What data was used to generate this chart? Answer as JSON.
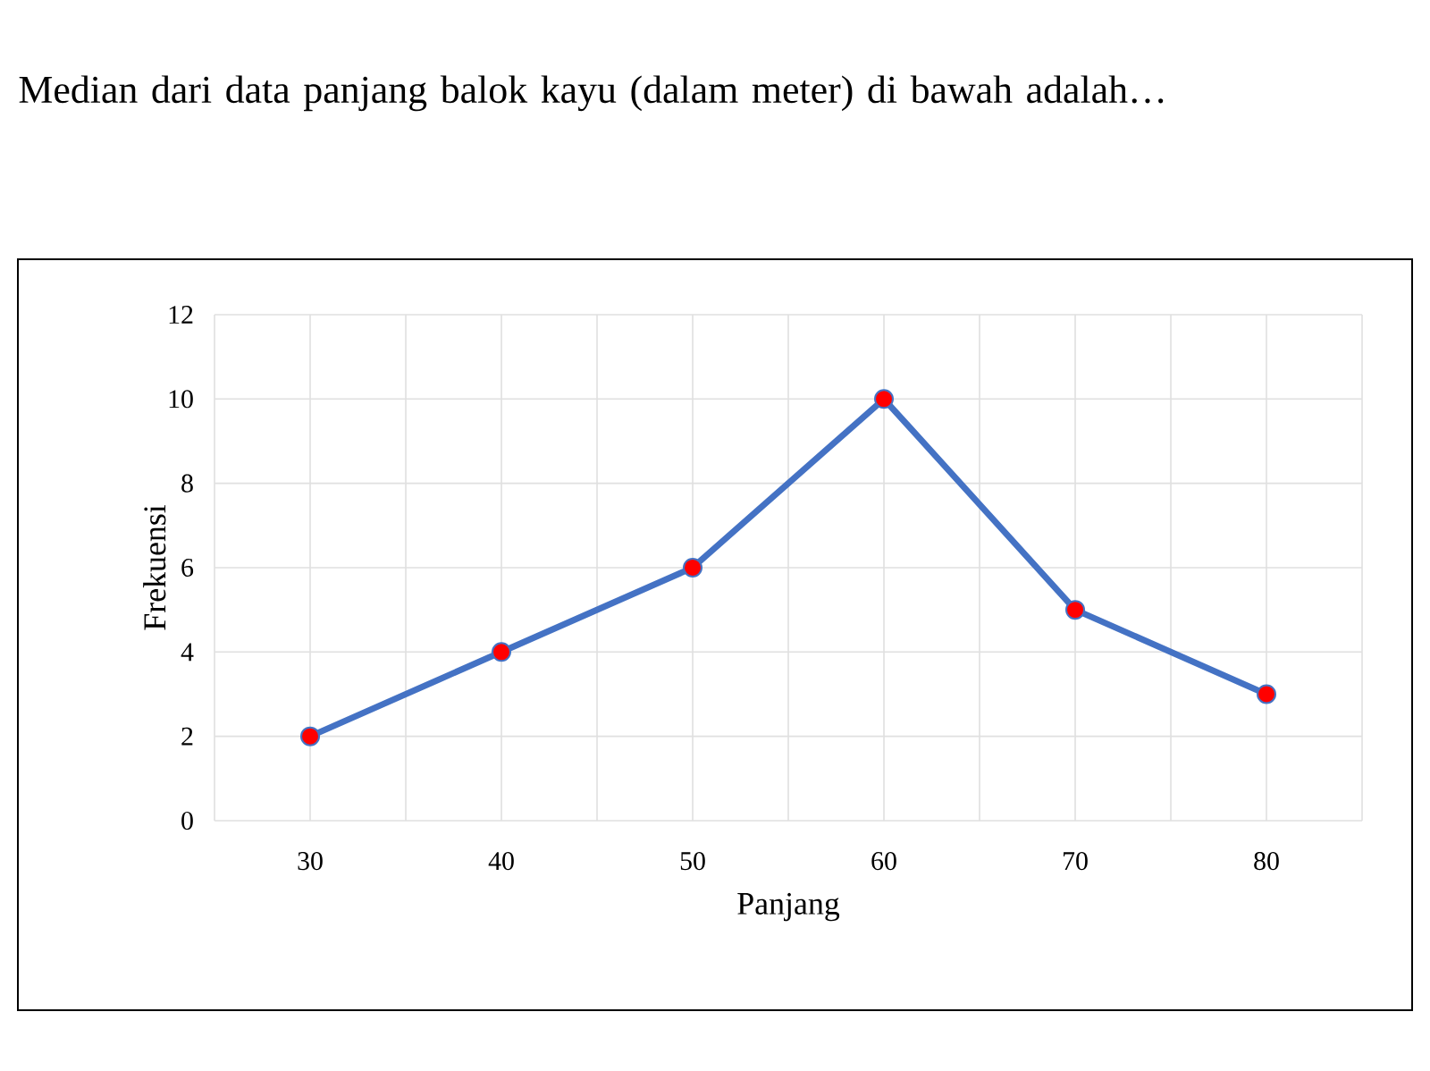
{
  "chart_data": {
    "type": "line",
    "title": "Median dari data panjang balok kayu (dalam meter) di bawah adalah…",
    "xlabel": "Panjang",
    "ylabel": "Frekuensi",
    "categories": [
      "30",
      "40",
      "50",
      "60",
      "70",
      "80"
    ],
    "series": [
      {
        "color": "#4472c4",
        "values": [
          2,
          4,
          6,
          10,
          5,
          3
        ]
      }
    ],
    "ylim": [
      0,
      12
    ],
    "yticks": [
      0,
      2,
      4,
      6,
      8,
      10,
      12
    ],
    "grid": true,
    "marker": "circle",
    "line_style": "solid"
  }
}
